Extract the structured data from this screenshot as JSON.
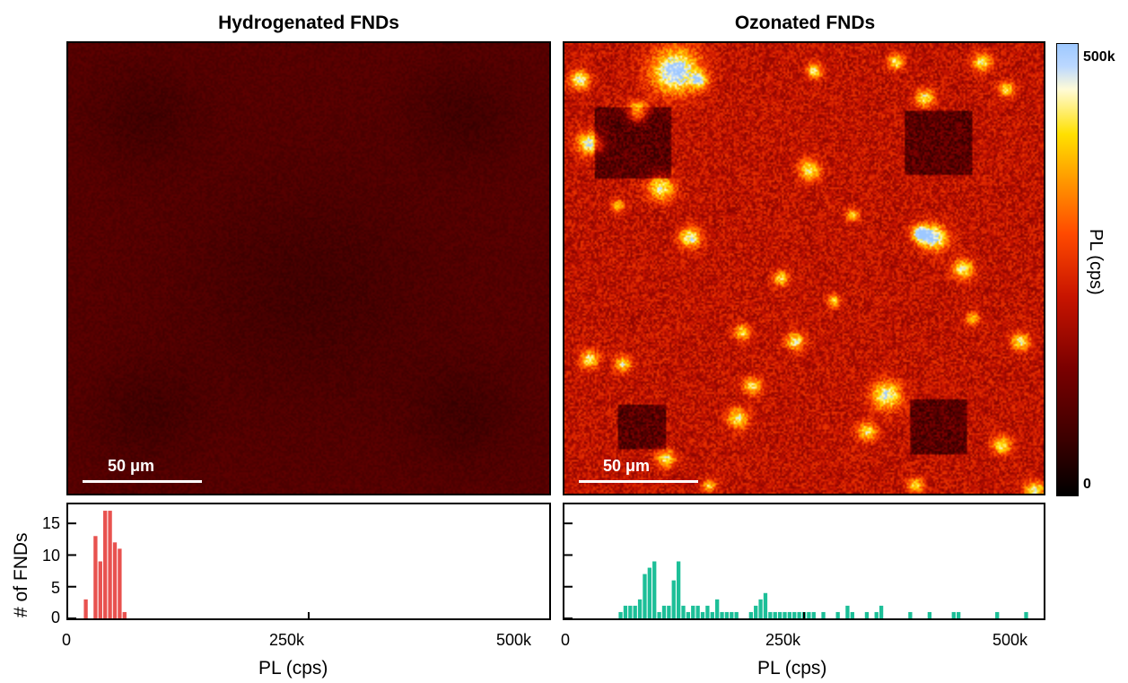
{
  "panels": {
    "left_title": "Hydrogenated FNDs",
    "right_title": "Ozonated FNDs",
    "scale_bar_label": "50 μm"
  },
  "colorbar": {
    "title": "PL (cps)",
    "max_label": "500k",
    "min_label": "0",
    "range": [
      0,
      500000
    ],
    "colormap": [
      "#000000",
      "#7a0000",
      "#c81400",
      "#ff9a00",
      "#ffe000",
      "#fffbd8",
      "#9dc8ff"
    ]
  },
  "histogram_axes": {
    "xlabel": "PL (cps)",
    "ylabel": "# of FNDs",
    "xticks": [
      "0",
      "250k",
      "500k"
    ],
    "yticks": [
      "0",
      "5",
      "10",
      "15"
    ]
  },
  "chart_data": [
    {
      "type": "heatmap",
      "title": "Hydrogenated FNDs",
      "description_values": {
        "typical_PL": 50000
      },
      "colorbar_range": [
        0,
        500000
      ]
    },
    {
      "type": "heatmap",
      "title": "Ozonated FNDs",
      "description_values": {
        "typical_PL": 150000
      },
      "colorbar_range": [
        0,
        500000
      ]
    },
    {
      "type": "bar",
      "xlabel": "PL (cps)",
      "ylabel": "# of FNDs",
      "xlim": [
        0,
        500000
      ],
      "ylim": [
        0,
        18
      ],
      "color": "#e8524f",
      "bin_centers": [
        20000,
        30000,
        35000,
        40000,
        45000,
        50000,
        55000,
        60000,
        65000,
        70000
      ],
      "values": [
        3,
        13,
        9,
        17,
        17,
        12,
        11,
        1,
        0,
        0
      ]
    },
    {
      "type": "bar",
      "xlabel": "PL (cps)",
      "ylabel": "# of FNDs",
      "xlim": [
        0,
        500000
      ],
      "ylim": [
        0,
        18
      ],
      "color": "#1dbf98",
      "bin_centers": [
        60000,
        65000,
        70000,
        75000,
        80000,
        85000,
        90000,
        95000,
        100000,
        105000,
        110000,
        115000,
        120000,
        125000,
        130000,
        135000,
        140000,
        145000,
        150000,
        155000,
        160000,
        165000,
        170000,
        175000,
        180000,
        195000,
        200000,
        205000,
        210000,
        215000,
        220000,
        225000,
        230000,
        235000,
        240000,
        245000,
        250000,
        255000,
        260000,
        270000,
        285000,
        295000,
        300000,
        315000,
        325000,
        330000,
        360000,
        380000,
        405000,
        410000,
        450000,
        480000
      ],
      "values": [
        1,
        2,
        2,
        2,
        3,
        7,
        8,
        9,
        1,
        2,
        2,
        6,
        9,
        2,
        1,
        2,
        2,
        1,
        2,
        1,
        3,
        1,
        1,
        1,
        1,
        1,
        2,
        3,
        4,
        1,
        1,
        1,
        1,
        1,
        1,
        1,
        1,
        1,
        1,
        1,
        1,
        2,
        1,
        1,
        1,
        2,
        1,
        1,
        1,
        1,
        1,
        1
      ]
    }
  ]
}
